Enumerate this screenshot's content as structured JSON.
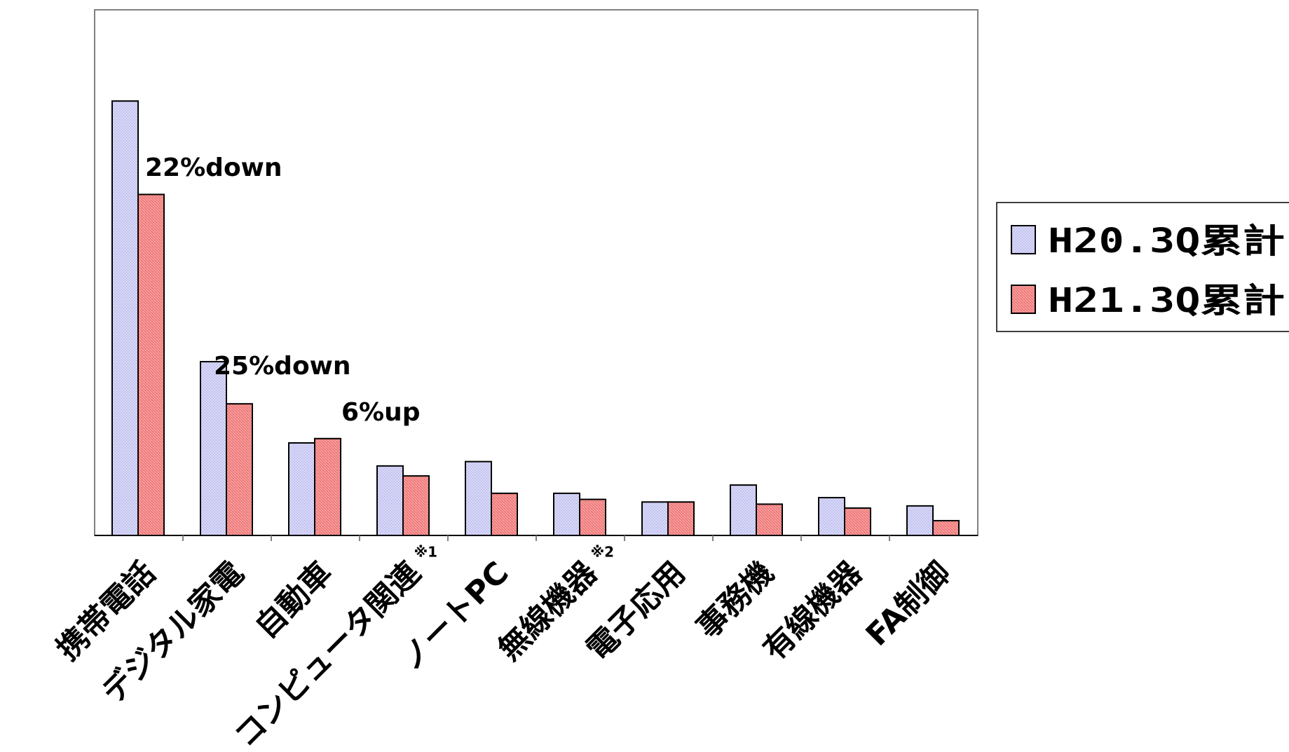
{
  "chart_data": {
    "type": "bar",
    "categories": [
      {
        "label": "携帯電話",
        "note": ""
      },
      {
        "label": "デジタル家電",
        "note": ""
      },
      {
        "label": "自動車",
        "note": ""
      },
      {
        "label": "コンピュータ関連",
        "note": "※1"
      },
      {
        "label": "ノートPC",
        "note": ""
      },
      {
        "label": "無線機器",
        "note": "※2"
      },
      {
        "label": "電子応用",
        "note": ""
      },
      {
        "label": "事務機",
        "note": ""
      },
      {
        "label": "有線機器",
        "note": ""
      },
      {
        "label": "FA制御",
        "note": ""
      }
    ],
    "series": [
      {
        "name": "H20.3Q累計",
        "color": "#c8c8f4",
        "values": [
          100,
          40,
          21.3,
          16,
          17,
          9.7,
          7.7,
          11.6,
          8.7,
          6.8
        ]
      },
      {
        "name": "H21.3Q累計",
        "color": "#f07878",
        "values": [
          78.5,
          30.3,
          22.3,
          13.7,
          9.7,
          8.3,
          7.7,
          7.2,
          6.3,
          3.4
        ]
      }
    ],
    "annotations": [
      {
        "category": 0,
        "text": "22%down"
      },
      {
        "category": 1,
        "text": "25%down"
      },
      {
        "category": 2,
        "text": "6%up"
      }
    ],
    "ylim": [
      0,
      121
    ],
    "y_axis_labels": false,
    "grid": false,
    "legend_position": "right",
    "title": "",
    "xlabel": "",
    "ylabel": ""
  }
}
